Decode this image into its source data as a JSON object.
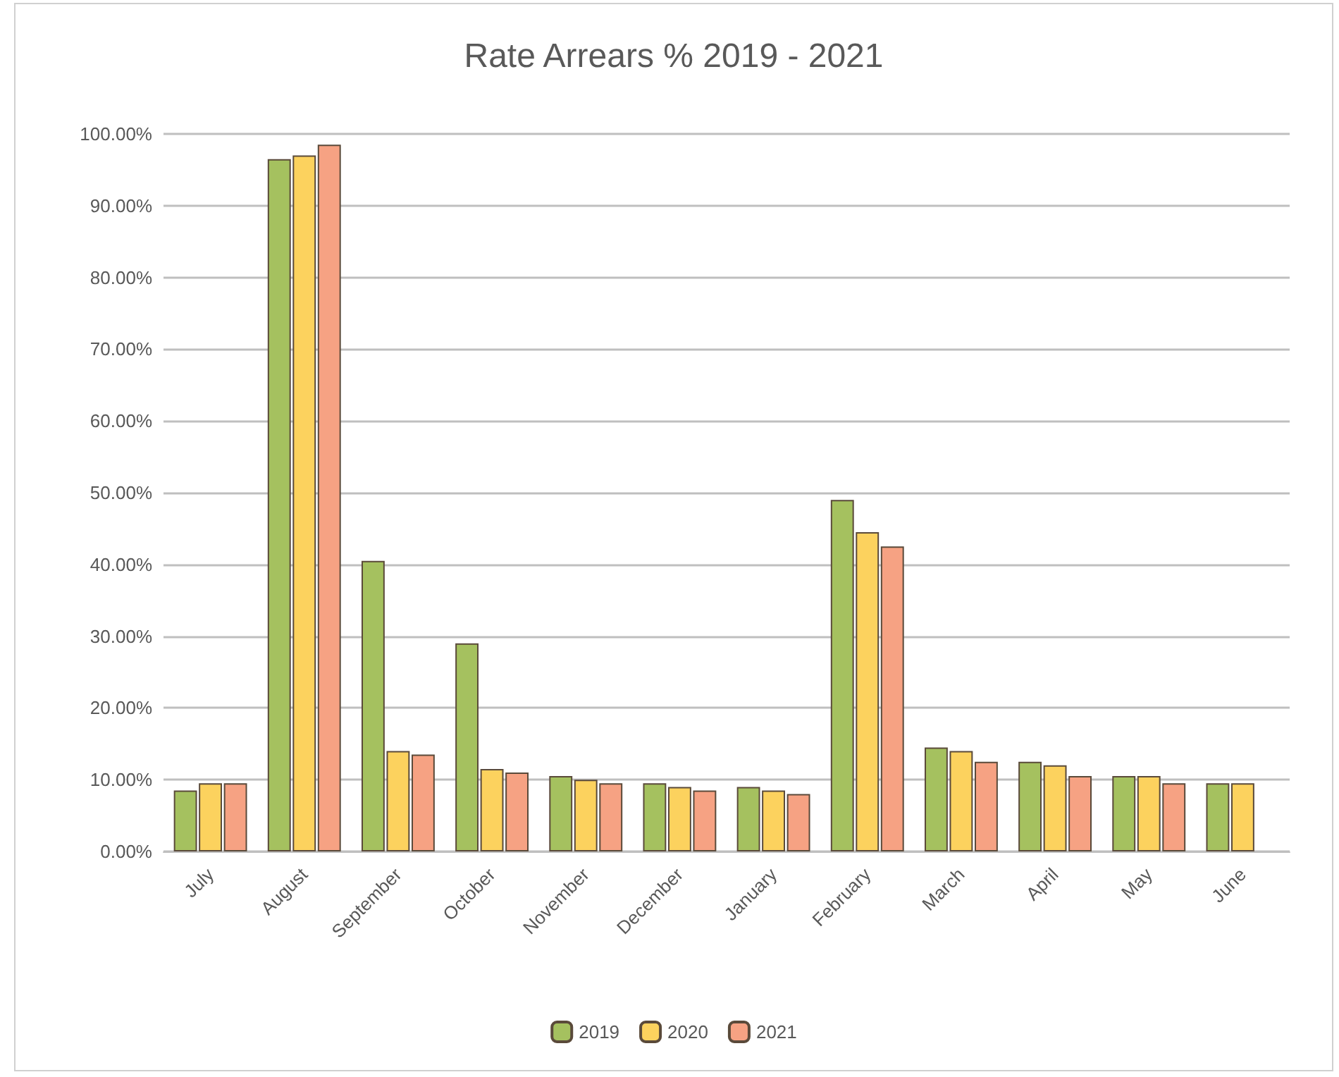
{
  "chart_data": {
    "type": "bar",
    "title": "Rate Arrears % 2019 - 2021",
    "categories": [
      "July",
      "August",
      "September",
      "October",
      "November",
      "December",
      "January",
      "February",
      "March",
      "April",
      "May",
      "June"
    ],
    "series": [
      {
        "name": "2019",
        "color": "#a5c15f",
        "values": [
          8.5,
          96.5,
          40.5,
          29,
          10.5,
          9.5,
          9,
          49,
          14.5,
          12.5,
          10.5,
          9.5
        ]
      },
      {
        "name": "2020",
        "color": "#fcd25e",
        "values": [
          9.5,
          97,
          14,
          11.5,
          10,
          9,
          8.5,
          44.5,
          14,
          12,
          10.5,
          9.5
        ]
      },
      {
        "name": "2021",
        "color": "#f6a283",
        "values": [
          9.5,
          98.5,
          13.5,
          11,
          9.5,
          8.5,
          8,
          42.5,
          12.5,
          10.5,
          9.5,
          null
        ]
      }
    ],
    "ylim": [
      0,
      100
    ],
    "yticks": [
      {
        "value": 0,
        "label": "0.00%"
      },
      {
        "value": 10,
        "label": "10.00%"
      },
      {
        "value": 20,
        "label": "20.00%"
      },
      {
        "value": 30,
        "label": "30.00%"
      },
      {
        "value": 40,
        "label": "40.00%"
      },
      {
        "value": 50,
        "label": "50.00%"
      },
      {
        "value": 60,
        "label": "60.00%"
      },
      {
        "value": 70,
        "label": "70.00%"
      },
      {
        "value": 80,
        "label": "80.00%"
      },
      {
        "value": 90,
        "label": "90.00%"
      },
      {
        "value": 100,
        "label": "100.00%"
      }
    ],
    "grid": "y",
    "legend": "bottom"
  }
}
